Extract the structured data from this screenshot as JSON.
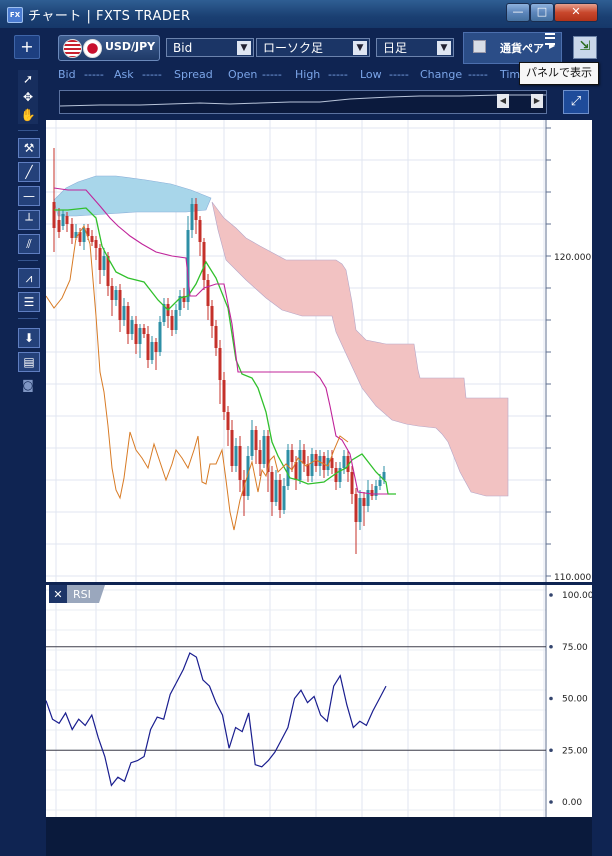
{
  "window": {
    "title": "チャート | FXTS TRADER",
    "app_icon": "FX"
  },
  "toolbar": {
    "pair": "USD/JPY",
    "price_type": "Bid",
    "chart_type": "ローソク足",
    "period": "日足",
    "currency_pair_toggle": "通貨ペア",
    "tooltip": "パネルで表示"
  },
  "quote_row": [
    {
      "label": "Bid",
      "value": "-----"
    },
    {
      "label": "Ask",
      "value": "-----"
    },
    {
      "label": "Spread",
      "value": ""
    },
    {
      "label": "Open",
      "value": "-----"
    },
    {
      "label": "High",
      "value": "-----"
    },
    {
      "label": "Low",
      "value": "-----"
    },
    {
      "label": "Change",
      "value": "-----"
    },
    {
      "label": "Tim",
      "value": ""
    }
  ],
  "price_axis": {
    "labels": [
      "120.000",
      "110.000"
    ]
  },
  "rsi": {
    "label": "RSI",
    "axis_labels": [
      "100.00",
      "75.00",
      "50.00",
      "25.00",
      "0.00"
    ],
    "values": [
      49,
      40,
      38,
      43,
      35,
      40,
      37,
      42,
      31,
      22,
      8,
      12,
      10,
      19,
      20,
      22,
      35,
      41,
      40,
      52,
      58,
      64,
      72,
      70,
      59,
      56,
      48,
      42,
      26,
      36,
      34,
      43,
      18,
      17,
      20,
      24,
      30,
      36,
      50,
      54,
      48,
      51,
      42,
      39,
      56,
      61,
      47,
      36,
      39,
      37,
      44,
      50,
      56
    ]
  },
  "colors": {
    "background": "#ffffff",
    "frame": "#0f2452",
    "bull_candle": "#2e8fa6",
    "bear_candle": "#c4302a",
    "kumo_up": "#a8d6ea",
    "kumo_down": "#f2c2c2",
    "tenkan": "#31c02c",
    "kijun": "#c0249a",
    "chikou": "#d87b25",
    "rsi_line": "#1a1e8f"
  }
}
